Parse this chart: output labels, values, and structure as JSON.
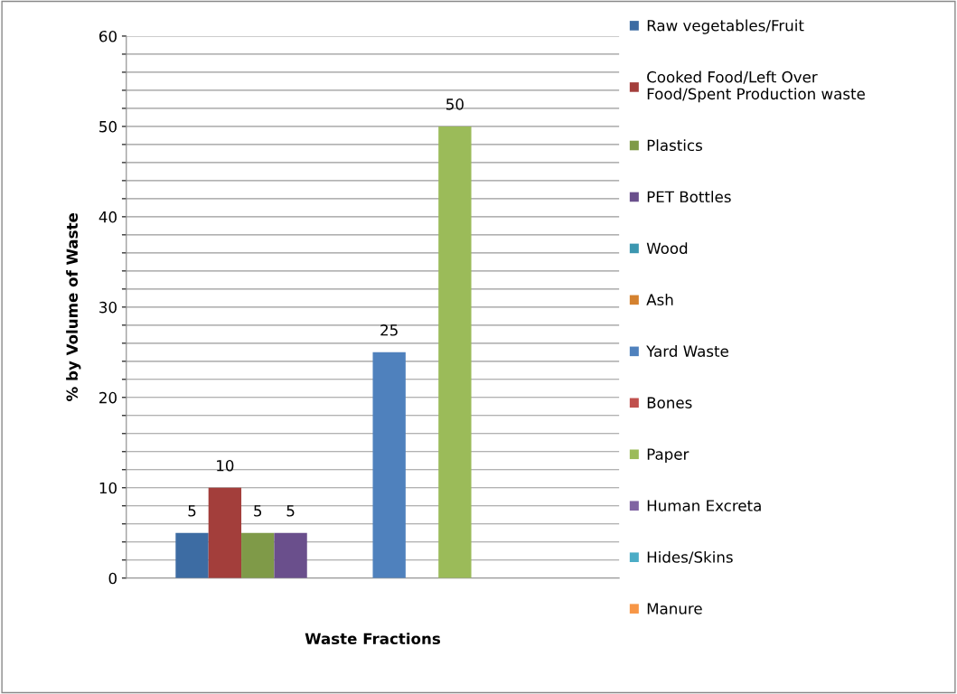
{
  "chart_data": {
    "type": "bar",
    "xlabel": "Waste Fractions",
    "ylabel": "% by Volume of Waste",
    "categories": [
      null
    ],
    "series": [
      {
        "name": "Raw vegetables/Fruit",
        "color": "#3d6ca3",
        "values": [
          5
        ]
      },
      {
        "name": "Cooked Food/Left Over\nFood/Spent Production waste",
        "color": "#a33e3b",
        "values": [
          10
        ]
      },
      {
        "name": "Plastics",
        "color": "#7f9a48",
        "values": [
          5
        ]
      },
      {
        "name": "PET Bottles",
        "color": "#6a4f8c",
        "values": [
          5
        ]
      },
      {
        "name": "Wood",
        "color": "#3c97b0",
        "values": [
          null
        ]
      },
      {
        "name": "Ash",
        "color": "#d4812f",
        "values": [
          null
        ]
      },
      {
        "name": "Yard Waste",
        "color": "#4f81bd",
        "values": [
          25
        ]
      },
      {
        "name": "Bones",
        "color": "#c0504d",
        "values": [
          null
        ]
      },
      {
        "name": "Paper",
        "color": "#9bbb59",
        "values": [
          50
        ]
      },
      {
        "name": "Human Excreta",
        "color": "#8064a2",
        "values": [
          null
        ]
      },
      {
        "name": "Hides/Skins",
        "color": "#4bacc6",
        "values": [
          null
        ]
      },
      {
        "name": "Manure",
        "color": "#f79646",
        "values": [
          null
        ]
      }
    ],
    "ylim": [
      0,
      60
    ],
    "yticks": [
      0,
      {
        "value": 2,
        "label": null
      },
      {
        "value": 4,
        "label": null
      },
      {
        "value": 6,
        "label": null
      },
      {
        "value": 8,
        "label": null
      },
      10,
      {
        "value": 12,
        "label": null
      },
      {
        "value": 14,
        "label": null
      },
      {
        "value": 16,
        "label": null
      },
      {
        "value": 18,
        "label": null
      },
      20,
      {
        "value": 22,
        "label": null
      },
      {
        "value": 24,
        "label": null
      },
      {
        "value": 26,
        "label": null
      },
      {
        "value": 28,
        "label": null
      },
      30,
      {
        "value": 32,
        "label": null
      },
      {
        "value": 34,
        "label": null
      },
      {
        "value": 36,
        "label": null
      },
      {
        "value": 38,
        "label": null
      },
      40,
      {
        "value": 42,
        "label": null
      },
      {
        "value": 44,
        "label": null
      },
      {
        "value": 46,
        "label": null
      },
      {
        "value": 48,
        "label": null
      },
      50,
      {
        "value": 52,
        "label": null
      },
      {
        "value": 54,
        "label": null
      },
      {
        "value": 56,
        "label": null
      },
      {
        "value": 58,
        "label": null
      },
      60
    ],
    "grid": "y",
    "legend": "right",
    "data_labels": true
  }
}
